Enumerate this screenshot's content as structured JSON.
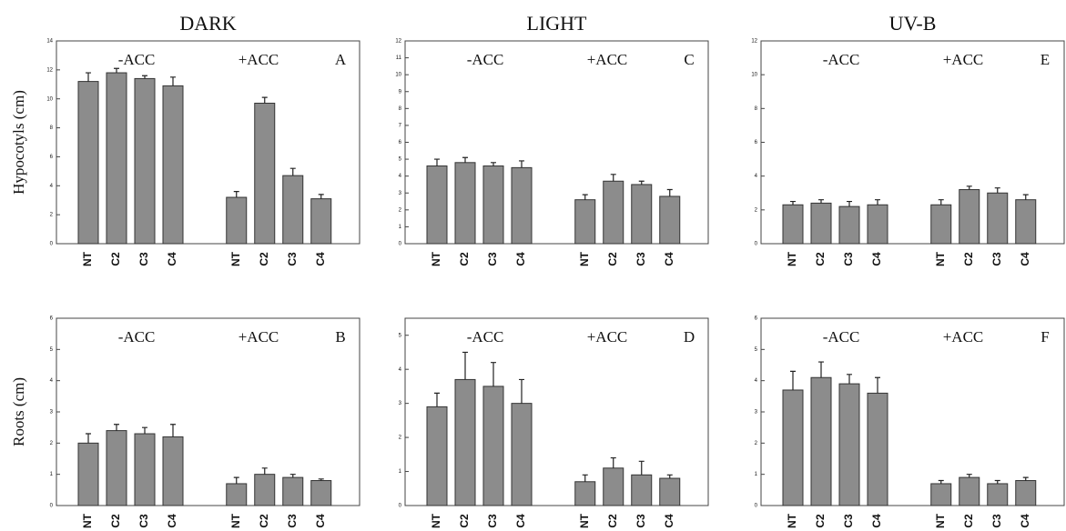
{
  "chart_data": [
    {
      "type": "bar",
      "title": "DARK",
      "ylabel": "Hypocotyls (cm)",
      "annotations": [
        "-ACC",
        "+ACC",
        "A"
      ],
      "categories": [
        "NT",
        "C2",
        "C3",
        "C4",
        "NT",
        "C2",
        "C3",
        "C4"
      ],
      "series": [
        {
          "color": "#8c8c8c",
          "values": [
            11.2,
            11.8,
            11.4,
            10.9,
            3.2,
            9.7,
            4.7,
            3.1
          ],
          "errors": [
            0.6,
            0.3,
            0.2,
            0.6,
            0.4,
            0.4,
            0.5,
            0.3
          ]
        }
      ],
      "ylim": [
        0,
        14
      ],
      "yticks": [
        0,
        2,
        4,
        6,
        8,
        10,
        12,
        14
      ]
    },
    {
      "type": "bar",
      "title": "LIGHT",
      "annotations": [
        "-ACC",
        "+ACC",
        "C"
      ],
      "categories": [
        "NT",
        "C2",
        "C3",
        "C4",
        "NT",
        "C2",
        "C3",
        "C4"
      ],
      "series": [
        {
          "color": "#8c8c8c",
          "values": [
            4.6,
            4.8,
            4.6,
            4.5,
            2.6,
            3.7,
            3.5,
            2.8
          ],
          "errors": [
            0.4,
            0.3,
            0.2,
            0.4,
            0.3,
            0.4,
            0.2,
            0.4
          ]
        }
      ],
      "ylim": [
        0,
        12
      ],
      "yticks": [
        0,
        1,
        2,
        3,
        4,
        5,
        6,
        7,
        8,
        9,
        10,
        11,
        12
      ]
    },
    {
      "type": "bar",
      "title": "UV-B",
      "annotations": [
        "-ACC",
        "+ACC",
        "E"
      ],
      "categories": [
        "NT",
        "C2",
        "C3",
        "C4",
        "NT",
        "C2",
        "C3",
        "C4"
      ],
      "series": [
        {
          "color": "#8c8c8c",
          "values": [
            2.3,
            2.4,
            2.2,
            2.3,
            2.3,
            3.2,
            3.0,
            2.6
          ],
          "errors": [
            0.2,
            0.2,
            0.3,
            0.3,
            0.3,
            0.2,
            0.3,
            0.3
          ]
        }
      ],
      "ylim": [
        0,
        12
      ],
      "yticks": [
        0,
        2,
        4,
        6,
        8,
        10,
        12
      ]
    },
    {
      "type": "bar",
      "ylabel": "Roots (cm)",
      "annotations": [
        "-ACC",
        "+ACC",
        "B"
      ],
      "categories": [
        "NT",
        "C2",
        "C3",
        "C4",
        "NT",
        "C2",
        "C3",
        "C4"
      ],
      "series": [
        {
          "color": "#8c8c8c",
          "values": [
            2.0,
            2.4,
            2.3,
            2.2,
            0.7,
            1.0,
            0.9,
            0.8
          ],
          "errors": [
            0.3,
            0.2,
            0.2,
            0.4,
            0.2,
            0.2,
            0.1,
            0.05
          ]
        }
      ],
      "ylim": [
        0,
        6
      ],
      "yticks": [
        0,
        1,
        2,
        3,
        4,
        5,
        6
      ]
    },
    {
      "type": "bar",
      "annotations": [
        "-ACC",
        "+ACC",
        "D"
      ],
      "categories": [
        "NT",
        "C2",
        "C3",
        "C4",
        "NT",
        "C2",
        "C3",
        "C4"
      ],
      "series": [
        {
          "color": "#8c8c8c",
          "values": [
            2.9,
            3.7,
            3.5,
            3.0,
            0.7,
            1.1,
            0.9,
            0.8
          ],
          "errors": [
            0.4,
            0.8,
            0.7,
            0.7,
            0.2,
            0.3,
            0.4,
            0.1
          ]
        }
      ],
      "ylim": [
        0,
        5.5
      ],
      "yticks": [
        0,
        1,
        2,
        3,
        4,
        5
      ]
    },
    {
      "type": "bar",
      "annotations": [
        "-ACC",
        "+ACC",
        "F"
      ],
      "categories": [
        "NT",
        "C2",
        "C3",
        "C4",
        "NT",
        "C2",
        "C3",
        "C4"
      ],
      "series": [
        {
          "color": "#8c8c8c",
          "values": [
            3.7,
            4.1,
            3.9,
            3.6,
            0.7,
            0.9,
            0.7,
            0.8
          ],
          "errors": [
            0.6,
            0.5,
            0.3,
            0.5,
            0.1,
            0.1,
            0.1,
            0.1
          ]
        }
      ],
      "ylim": [
        0,
        6
      ],
      "yticks": [
        0,
        1,
        2,
        3,
        4,
        5,
        6
      ]
    }
  ]
}
